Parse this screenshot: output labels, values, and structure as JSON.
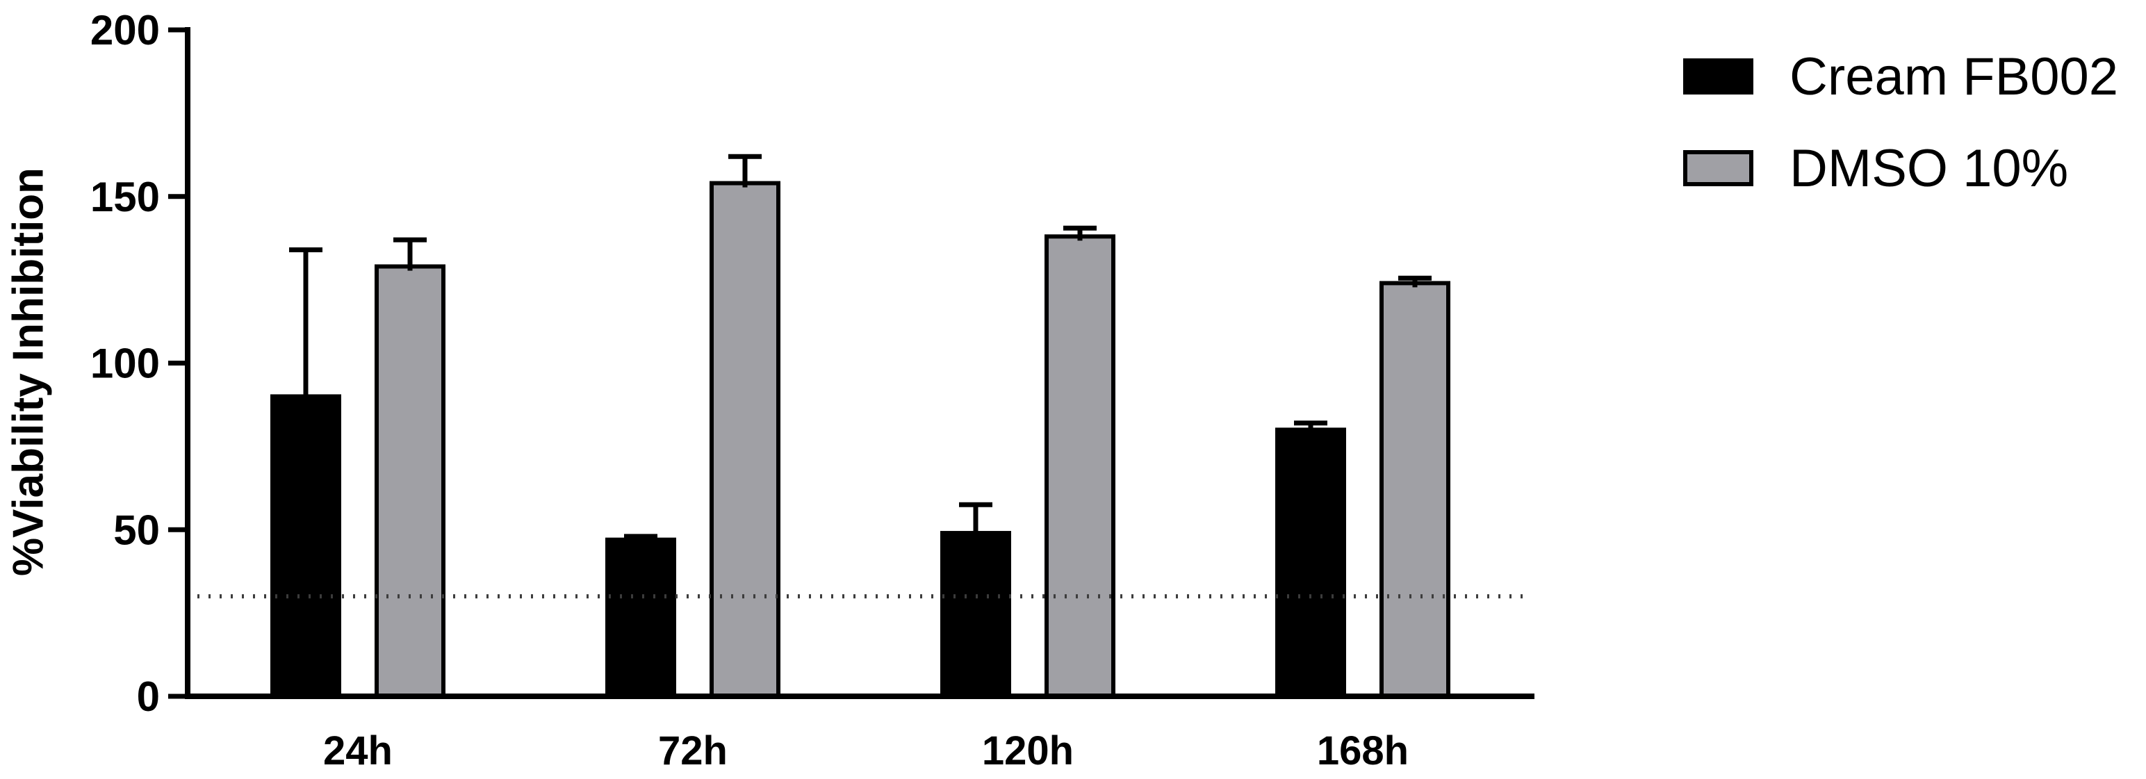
{
  "chart_data": {
    "type": "bar",
    "title": "",
    "xlabel": "",
    "ylabel": "%Viability Inhibition",
    "categories": [
      "24h",
      "72h",
      "120h",
      "168h"
    ],
    "series": [
      {
        "name": "Cream FB002",
        "color": "#000000",
        "values": [
          90,
          47,
          49,
          80
        ],
        "error_up": [
          44,
          1,
          8.5,
          2
        ]
      },
      {
        "name": "DMSO 10%",
        "color": "#a0a0a5",
        "values": [
          129,
          154,
          138,
          124
        ],
        "error_up": [
          8,
          8,
          2.5,
          1.5
        ]
      }
    ],
    "ylim": [
      0,
      200
    ],
    "yticks": [
      0,
      50,
      100,
      150,
      200
    ],
    "reference_line": {
      "value": 30,
      "style": "dotted"
    },
    "legend_position": "top-right",
    "grid": false,
    "axis_color": "#000000",
    "bar_border_color": "#000000"
  }
}
